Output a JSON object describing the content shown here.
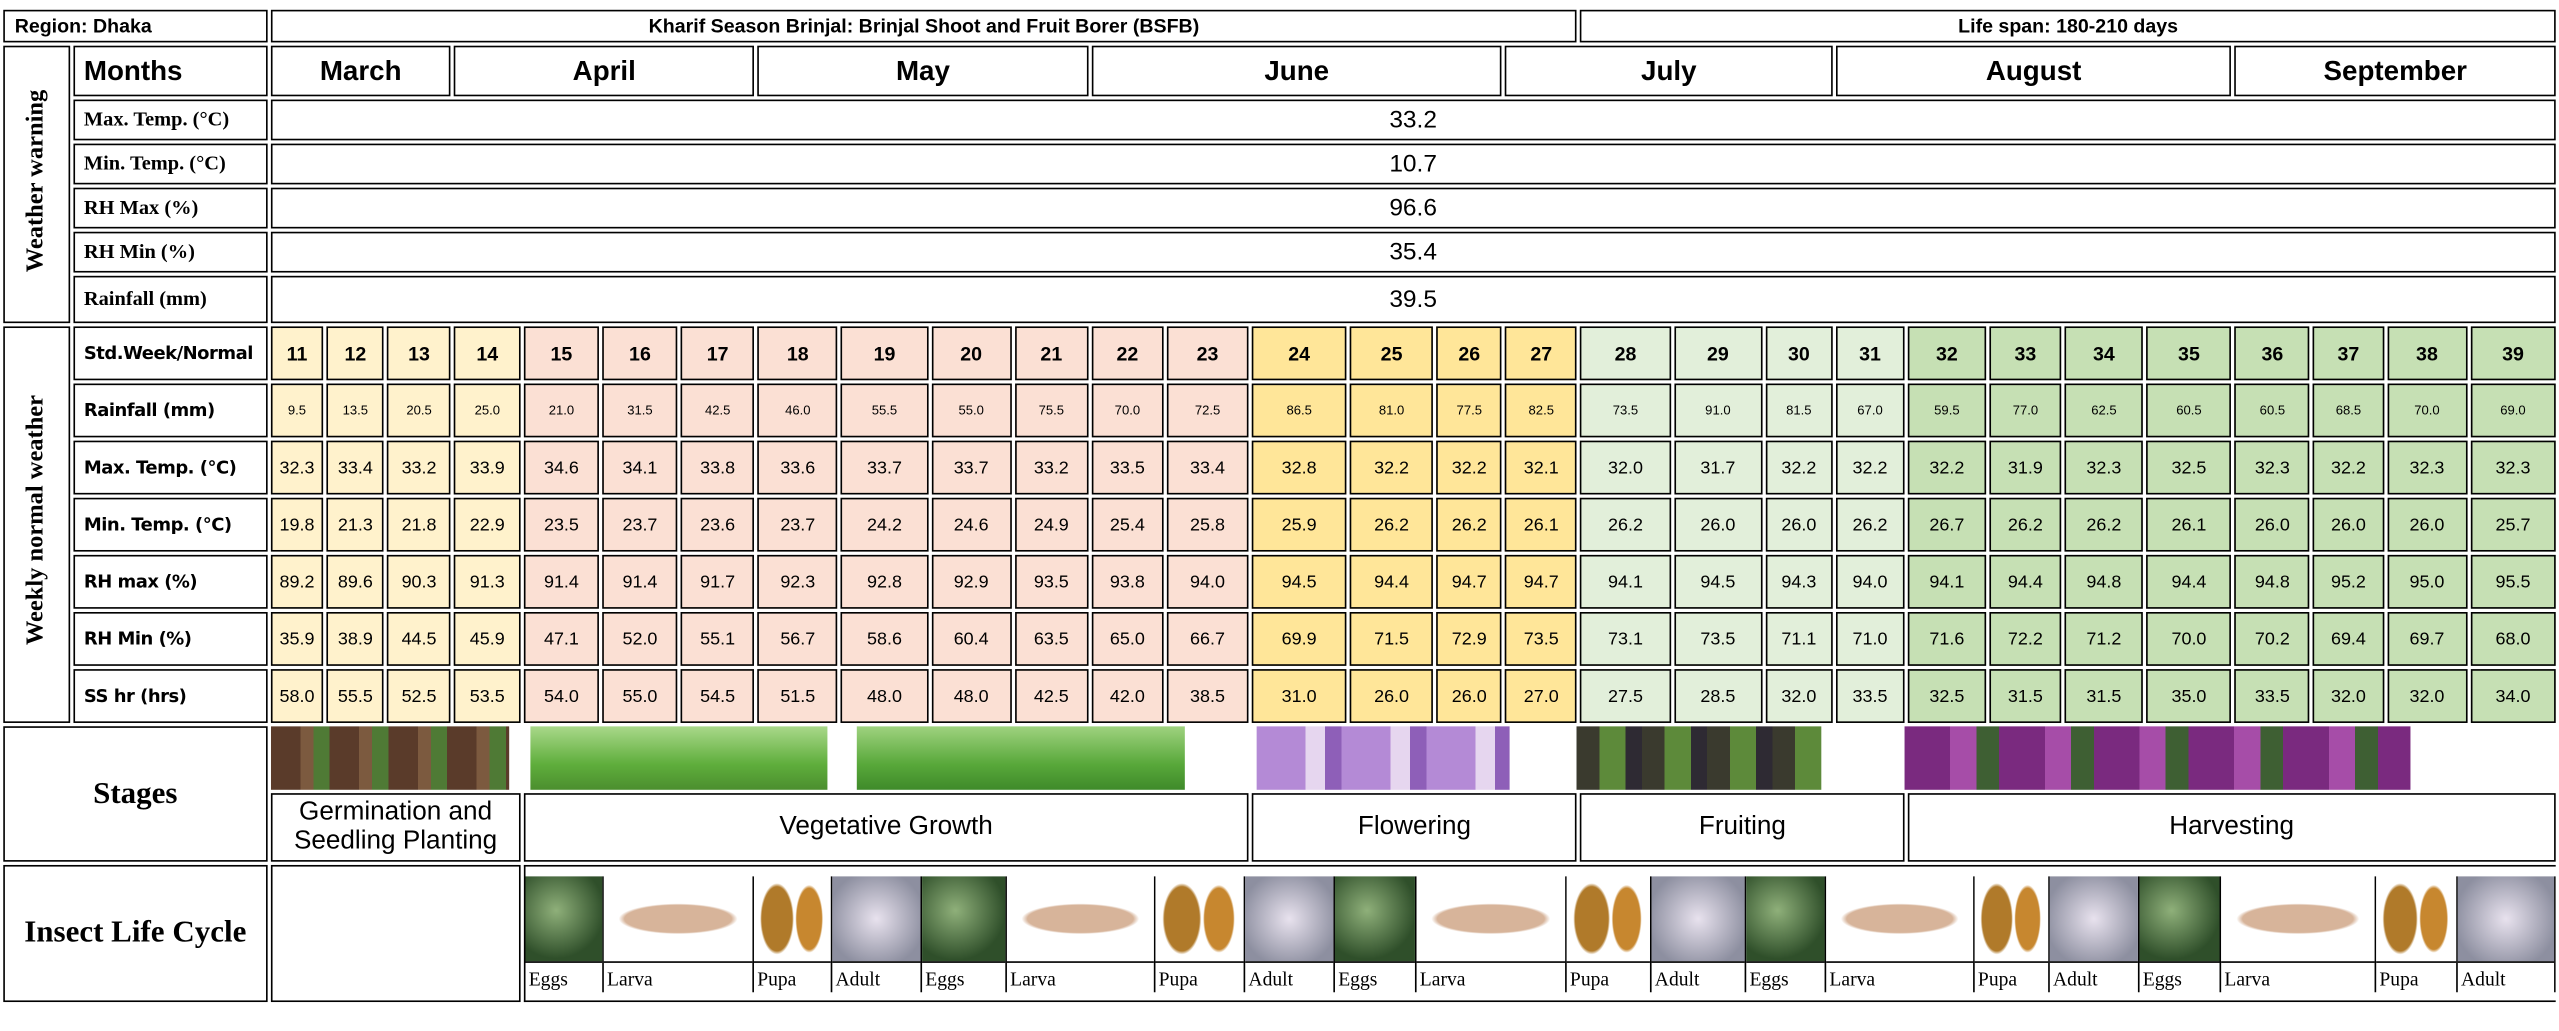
{
  "header": {
    "region": "Region: Dhaka",
    "title": "Kharif Season Brinjal: Brinjal Shoot and Fruit Borer (BSFB)",
    "lifespan": "Life span: 180-210 days"
  },
  "side": {
    "weather_warning": "Weather warning",
    "weekly_normal": "Weekly normal weather"
  },
  "months": {
    "label": "Months",
    "names": [
      "March",
      "April",
      "May",
      "June",
      "July",
      "August",
      "September"
    ]
  },
  "warning": {
    "rows": [
      {
        "label": "Max. Temp. (°C)",
        "value": "33.2"
      },
      {
        "label": "Min. Temp. (°C)",
        "value": "10.7"
      },
      {
        "label": "RH Max (%)",
        "value": "96.6"
      },
      {
        "label": "RH Min (%)",
        "value": "35.4"
      },
      {
        "label": "Rainfall (mm)",
        "value": "39.5"
      }
    ]
  },
  "weekly": {
    "rows": [
      {
        "label": "Std.Week/Normal",
        "values": [
          "11",
          "12",
          "13",
          "14",
          "15",
          "16",
          "17",
          "18",
          "19",
          "20",
          "21",
          "22",
          "23",
          "24",
          "25",
          "26",
          "27",
          "28",
          "29",
          "30",
          "31",
          "32",
          "33",
          "34",
          "35",
          "36",
          "37",
          "38",
          "39"
        ]
      },
      {
        "label": "Rainfall (mm)",
        "values": [
          "9.5",
          "13.5",
          "20.5",
          "25.0",
          "21.0",
          "31.5",
          "42.5",
          "46.0",
          "55.5",
          "55.0",
          "75.5",
          "70.0",
          "72.5",
          "86.5",
          "81.0",
          "77.5",
          "82.5",
          "73.5",
          "91.0",
          "81.5",
          "67.0",
          "59.5",
          "77.0",
          "62.5",
          "60.5",
          "60.5",
          "68.5",
          "70.0",
          "69.0"
        ]
      },
      {
        "label": "Max. Temp. (°C)",
        "values": [
          "32.3",
          "33.4",
          "33.2",
          "33.9",
          "34.6",
          "34.1",
          "33.8",
          "33.6",
          "33.7",
          "33.7",
          "33.2",
          "33.5",
          "33.4",
          "32.8",
          "32.2",
          "32.2",
          "32.1",
          "32.0",
          "31.7",
          "32.2",
          "32.2",
          "32.2",
          "31.9",
          "32.3",
          "32.5",
          "32.3",
          "32.2",
          "32.3",
          "32.3"
        ]
      },
      {
        "label": "Min. Temp. (°C)",
        "values": [
          "19.8",
          "21.3",
          "21.8",
          "22.9",
          "23.5",
          "23.7",
          "23.6",
          "23.7",
          "24.2",
          "24.6",
          "24.9",
          "25.4",
          "25.8",
          "25.9",
          "26.2",
          "26.2",
          "26.1",
          "26.2",
          "26.0",
          "26.0",
          "26.2",
          "26.7",
          "26.2",
          "26.2",
          "26.1",
          "26.0",
          "26.0",
          "26.0",
          "25.7"
        ]
      },
      {
        "label": "RH max (%)",
        "values": [
          "89.2",
          "89.6",
          "90.3",
          "91.3",
          "91.4",
          "91.4",
          "91.7",
          "92.3",
          "92.8",
          "92.9",
          "93.5",
          "93.8",
          "94.0",
          "94.5",
          "94.4",
          "94.7",
          "94.7",
          "94.1",
          "94.5",
          "94.3",
          "94.0",
          "94.1",
          "94.4",
          "94.8",
          "94.4",
          "94.8",
          "95.2",
          "95.0",
          "95.5"
        ]
      },
      {
        "label": "RH Min (%)",
        "values": [
          "35.9",
          "38.9",
          "44.5",
          "45.9",
          "47.1",
          "52.0",
          "55.1",
          "56.7",
          "58.6",
          "60.4",
          "63.5",
          "65.0",
          "66.7",
          "69.9",
          "71.5",
          "72.9",
          "73.5",
          "73.1",
          "73.5",
          "71.1",
          "71.0",
          "71.6",
          "72.2",
          "71.2",
          "70.0",
          "70.2",
          "69.4",
          "69.7",
          "68.0"
        ]
      },
      {
        "label": "SS hr (hrs)",
        "values": [
          "58.0",
          "55.5",
          "52.5",
          "53.5",
          "54.0",
          "55.0",
          "54.5",
          "51.5",
          "48.0",
          "48.0",
          "42.5",
          "42.0",
          "38.5",
          "31.0",
          "26.0",
          "26.0",
          "27.0",
          "27.5",
          "28.5",
          "32.0",
          "33.5",
          "32.5",
          "31.5",
          "31.5",
          "35.0",
          "33.5",
          "32.0",
          "32.0",
          "34.0"
        ]
      }
    ]
  },
  "stages": {
    "label": "Stages",
    "names": [
      "Germination and Seedling Planting",
      "Vegetative Growth",
      "Flowering",
      "Fruiting",
      "Harvesting"
    ]
  },
  "insects": {
    "label": "Insect Life Cycle",
    "names": [
      "Eggs",
      "Larva",
      "Pupa",
      "Adult",
      "Eggs",
      "Larva",
      "Pupa",
      "Adult",
      "Eggs",
      "Larva",
      "Pupa",
      "Adult",
      "Eggs",
      "Larva",
      "Pupa",
      "Adult",
      "Eggs",
      "Larva",
      "Pupa",
      "Adult"
    ]
  }
}
